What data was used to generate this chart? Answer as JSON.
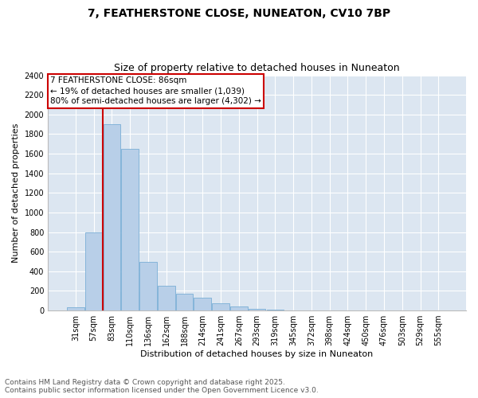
{
  "title_line1": "7, FEATHERSTONE CLOSE, NUNEATON, CV10 7BP",
  "title_line2": "Size of property relative to detached houses in Nuneaton",
  "xlabel": "Distribution of detached houses by size in Nuneaton",
  "ylabel": "Number of detached properties",
  "footer_line1": "Contains HM Land Registry data © Crown copyright and database right 2025.",
  "footer_line2": "Contains public sector information licensed under the Open Government Licence v3.0.",
  "bin_labels": [
    "31sqm",
    "57sqm",
    "83sqm",
    "110sqm",
    "136sqm",
    "162sqm",
    "188sqm",
    "214sqm",
    "241sqm",
    "267sqm",
    "293sqm",
    "319sqm",
    "345sqm",
    "372sqm",
    "398sqm",
    "424sqm",
    "450sqm",
    "476sqm",
    "503sqm",
    "529sqm",
    "555sqm"
  ],
  "bar_values": [
    30,
    800,
    1900,
    1650,
    500,
    250,
    175,
    130,
    70,
    40,
    20,
    5,
    2,
    1,
    1,
    0,
    0,
    0,
    0,
    0,
    0
  ],
  "bar_color": "#b8cfe8",
  "bar_edgecolor": "#7aaed6",
  "bg_color": "#dce6f1",
  "grid_color": "#ffffff",
  "vline_bin_index": 2,
  "vline_color": "#cc0000",
  "annotation_text": "7 FEATHERSTONE CLOSE: 86sqm\n← 19% of detached houses are smaller (1,039)\n80% of semi-detached houses are larger (4,302) →",
  "annotation_box_color": "#ffffff",
  "annotation_box_edgecolor": "#cc0000",
  "ylim": [
    0,
    2400
  ],
  "yticks": [
    0,
    200,
    400,
    600,
    800,
    1000,
    1200,
    1400,
    1600,
    1800,
    2000,
    2200,
    2400
  ],
  "title_fontsize": 10,
  "subtitle_fontsize": 9,
  "axis_label_fontsize": 8,
  "tick_fontsize": 7,
  "annotation_fontsize": 7.5,
  "footer_fontsize": 6.5
}
